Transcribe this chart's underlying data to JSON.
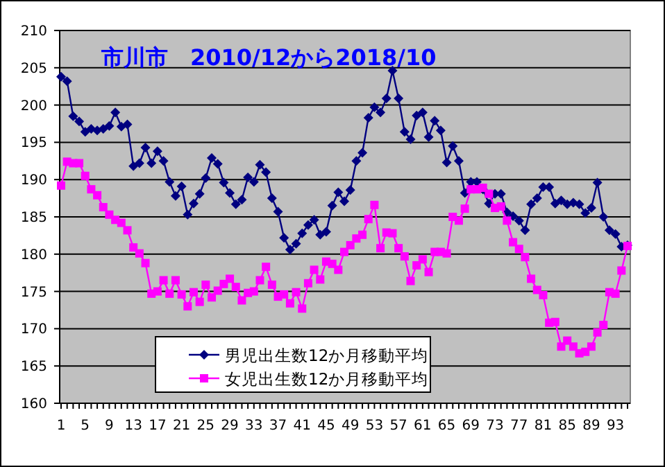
{
  "chart_data": {
    "type": "line",
    "title": "市川市　2010/12から2018/10",
    "categories": [
      "1",
      null,
      null,
      null,
      "5",
      null,
      null,
      null,
      "9",
      null,
      null,
      null,
      "13",
      null,
      null,
      null,
      "17",
      null,
      null,
      null,
      "21",
      null,
      null,
      null,
      "25",
      null,
      null,
      null,
      "29",
      null,
      null,
      null,
      "33",
      null,
      null,
      null,
      "37",
      null,
      null,
      null,
      "41",
      null,
      null,
      null,
      "45",
      null,
      null,
      null,
      "49",
      null,
      null,
      null,
      "53",
      null,
      null,
      null,
      "57",
      null,
      null,
      null,
      "61",
      null,
      null,
      null,
      "65",
      null,
      null,
      null,
      "69",
      null,
      null,
      null,
      "73",
      null,
      null,
      null,
      "77",
      null,
      null,
      null,
      "81",
      null,
      null,
      null,
      "85",
      null,
      null,
      null,
      "89",
      null,
      null,
      null,
      "93",
      null,
      null
    ],
    "series": [
      {
        "name": "男児出生数12か月移動平均",
        "color": "#000080",
        "marker": "diamond",
        "values": [
          203.8,
          203.2,
          198.5,
          197.8,
          196.4,
          196.8,
          196.6,
          196.8,
          197.2,
          199.0,
          197.1,
          197.4,
          191.8,
          192.2,
          194.3,
          192.2,
          193.8,
          192.5,
          189.7,
          187.8,
          189.1,
          185.3,
          186.8,
          188.1,
          190.2,
          192.9,
          192.1,
          189.6,
          188.2,
          186.7,
          187.3,
          190.3,
          189.7,
          192.0,
          191.0,
          187.5,
          185.7,
          182.2,
          180.6,
          181.4,
          182.8,
          183.9,
          184.6,
          182.6,
          183.0,
          186.5,
          188.3,
          187.1,
          188.6,
          192.5,
          193.6,
          198.3,
          199.7,
          199.0,
          200.9,
          204.6,
          200.9,
          196.4,
          195.4,
          198.6,
          199.0,
          195.7,
          197.9,
          196.6,
          192.3,
          194.5,
          192.5,
          188.2,
          189.7,
          189.7,
          188.7,
          186.8,
          188.1,
          188.1,
          185.6,
          185.1,
          184.5,
          183.2,
          186.7,
          187.5,
          189.0,
          189.0,
          186.8,
          187.2,
          186.7,
          186.9,
          186.7,
          185.5,
          186.2,
          189.6,
          185.0,
          183.2,
          182.7,
          181.0,
          181.2
        ]
      },
      {
        "name": "女児出生数12か月移動平均",
        "color": "#ff00ff",
        "marker": "square",
        "values": [
          189.2,
          192.4,
          192.2,
          192.2,
          190.5,
          188.7,
          187.9,
          186.3,
          185.3,
          184.6,
          184.2,
          183.2,
          180.9,
          180.1,
          178.8,
          174.7,
          175.0,
          176.5,
          174.7,
          176.5,
          174.6,
          173.0,
          174.9,
          173.6,
          175.9,
          174.2,
          175.1,
          176.0,
          176.7,
          175.6,
          173.8,
          174.8,
          175.0,
          176.5,
          178.3,
          175.9,
          174.3,
          174.6,
          173.4,
          174.9,
          172.7,
          176.1,
          177.9,
          176.6,
          179.0,
          178.7,
          177.9,
          180.3,
          181.2,
          182.1,
          182.6,
          184.7,
          186.6,
          180.8,
          182.9,
          182.8,
          180.8,
          179.7,
          176.4,
          178.5,
          179.3,
          177.6,
          180.3,
          180.3,
          180.1,
          185.0,
          184.5,
          186.1,
          188.7,
          188.7,
          188.9,
          188.1,
          186.2,
          186.4,
          184.5,
          181.6,
          180.7,
          179.6,
          176.7,
          175.2,
          174.5,
          170.8,
          170.9,
          167.6,
          168.4,
          167.6,
          166.7,
          166.9,
          167.6,
          169.5,
          170.5,
          174.9,
          174.7,
          177.8,
          181.1
        ]
      }
    ],
    "ylim": [
      160,
      210
    ],
    "yticks": [
      160,
      165,
      170,
      175,
      180,
      185,
      190,
      195,
      200,
      205,
      210
    ],
    "grid": "y",
    "legend": "bottom"
  }
}
